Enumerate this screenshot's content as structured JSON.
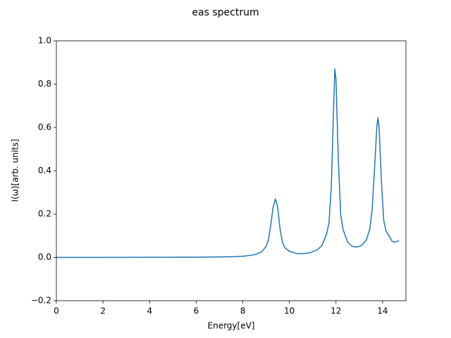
{
  "chart_data": {
    "type": "line",
    "title": "eas spectrum",
    "xlabel": "Energy[eV]",
    "ylabel": "I(ω)[arb. units]",
    "xlim": [
      0,
      15
    ],
    "ylim": [
      -0.2,
      1.0
    ],
    "xticks": [
      0,
      2,
      4,
      6,
      8,
      10,
      12,
      14
    ],
    "yticks": [
      {
        "value": -0.2,
        "label": "−0.2"
      },
      {
        "value": 0,
        "label": "0.0"
      },
      {
        "value": 0.2,
        "label": "0.2"
      },
      {
        "value": 0.4,
        "label": "0.4"
      },
      {
        "value": 0.6,
        "label": "0.6"
      },
      {
        "value": 0.8,
        "label": "0.8"
      },
      {
        "value": 1.0,
        "label": "1.0"
      }
    ],
    "x": [
      0,
      2,
      4,
      6,
      7,
      7.5,
      8,
      8.5,
      8.8,
      9.0,
      9.1,
      9.2,
      9.3,
      9.4,
      9.5,
      9.6,
      9.7,
      9.8,
      10.0,
      10.3,
      10.6,
      10.9,
      11.2,
      11.4,
      11.6,
      11.7,
      11.8,
      11.9,
      11.95,
      12.0,
      12.1,
      12.2,
      12.3,
      12.5,
      12.7,
      12.9,
      13.1,
      13.3,
      13.45,
      13.55,
      13.65,
      13.75,
      13.8,
      13.85,
      13.95,
      14.05,
      14.15,
      14.25,
      14.4,
      14.5,
      14.6,
      14.7
    ],
    "series": [
      {
        "name": "spectrum",
        "color": "#1f77b4",
        "values": [
          0,
          0,
          0.0005,
          0.001,
          0.002,
          0.003,
          0.005,
          0.012,
          0.025,
          0.05,
          0.08,
          0.15,
          0.23,
          0.27,
          0.23,
          0.13,
          0.07,
          0.045,
          0.028,
          0.018,
          0.017,
          0.022,
          0.035,
          0.055,
          0.11,
          0.16,
          0.33,
          0.7,
          0.87,
          0.82,
          0.45,
          0.2,
          0.13,
          0.07,
          0.05,
          0.048,
          0.055,
          0.08,
          0.13,
          0.22,
          0.4,
          0.6,
          0.645,
          0.6,
          0.35,
          0.17,
          0.12,
          0.105,
          0.075,
          0.07,
          0.073,
          0.077
        ]
      }
    ]
  }
}
